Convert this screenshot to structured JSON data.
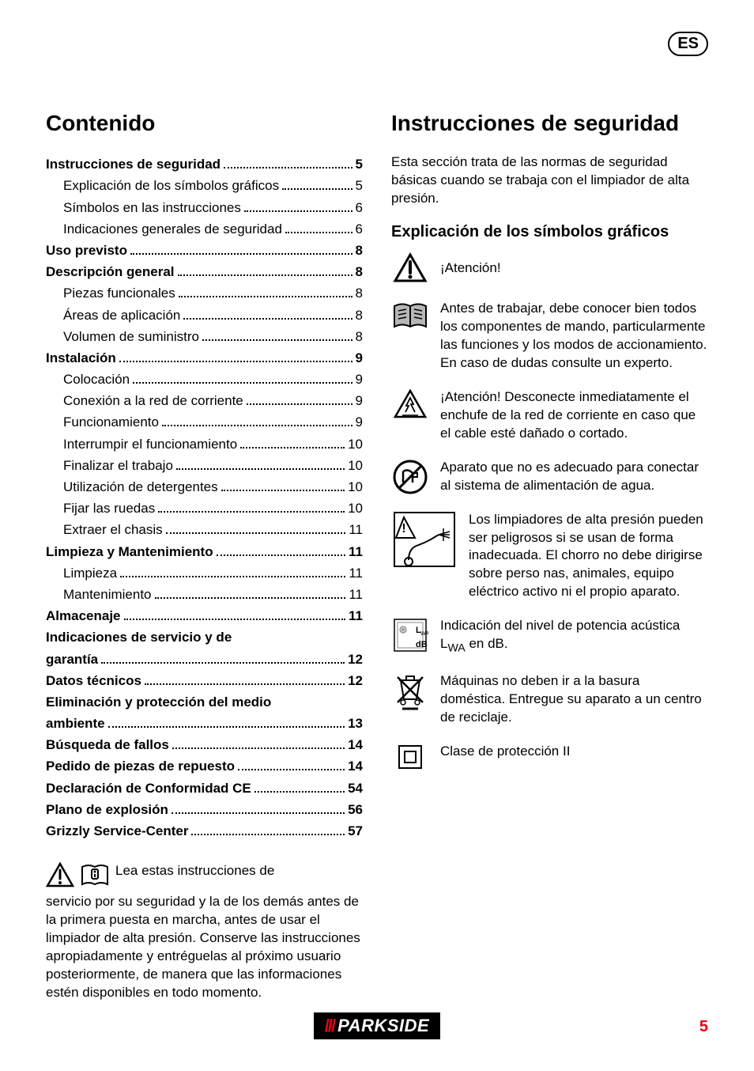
{
  "lang_badge": "ES",
  "left": {
    "heading": "Contenido",
    "toc": [
      {
        "label": "Instrucciones de seguridad",
        "page": "5",
        "bold": true
      },
      {
        "label": "Explicación de los símbolos gráficos",
        "page": "5",
        "indent": true
      },
      {
        "label": "Símbolos en las instrucciones",
        "page": "6",
        "indent": true
      },
      {
        "label": "Indicaciones generales de seguridad",
        "page": "6",
        "indent": true
      },
      {
        "label": "Uso previsto",
        "page": "8",
        "bold": true
      },
      {
        "label": "Descripción general",
        "page": "8",
        "bold": true
      },
      {
        "label": "Piezas funcionales",
        "page": "8",
        "indent": true
      },
      {
        "label": "Áreas de aplicación",
        "page": "8",
        "indent": true
      },
      {
        "label": "Volumen de suministro",
        "page": "8",
        "indent": true
      },
      {
        "label": "Instalación",
        "page": "9",
        "bold": true
      },
      {
        "label": "Colocación",
        "page": "9",
        "indent": true
      },
      {
        "label": "Conexión a la red de corriente",
        "page": "9",
        "indent": true
      },
      {
        "label": "Funcionamiento",
        "page": "9",
        "indent": true
      },
      {
        "label": "Interrumpir el funcionamiento",
        "page": "10",
        "indent": true
      },
      {
        "label": "Finalizar el trabajo",
        "page": "10",
        "indent": true
      },
      {
        "label": "Utilización de detergentes",
        "page": "10",
        "indent": true
      },
      {
        "label": "Fijar las ruedas",
        "page": "10",
        "indent": true
      },
      {
        "label": "Extraer el chasis",
        "page": "11",
        "indent": true
      },
      {
        "label": "Limpieza y Mantenimiento",
        "page": "11",
        "bold": true
      },
      {
        "label": "Limpieza",
        "page": "11",
        "indent": true
      },
      {
        "label": "Mantenimiento",
        "page": "11",
        "indent": true
      },
      {
        "label": "Almacenaje",
        "page": "11",
        "bold": true
      },
      {
        "two_lines": true,
        "label1": "Indicaciones de servicio y de",
        "label2": "garantía",
        "page": "12",
        "bold": true
      },
      {
        "label": "Datos técnicos",
        "page": "12",
        "bold": true
      },
      {
        "two_lines": true,
        "label1": "Eliminación y protección del medio",
        "label2": "ambiente",
        "page": "13",
        "bold": true
      },
      {
        "label": "Búsqueda de fallos",
        "page": "14",
        "bold": true
      },
      {
        "label": "Pedido de piezas de repuesto",
        "page": "14",
        "bold": true
      },
      {
        "label": "Declaración de Conformidad CE",
        "page": "54",
        "bold": true
      },
      {
        "label": "Plano de explosión",
        "page": "56",
        "bold": true
      },
      {
        "label": "Grizzly Service-Center",
        "page": "57",
        "bold": true
      }
    ],
    "lead_para_first": "Lea estas instrucciones de",
    "lead_para_rest": "servicio por su seguridad y la de los demás antes de la primera puesta en marcha, antes de usar el limpiador de alta presión. Conserve las instrucciones apropiadamente y entréguelas al próximo usuario posteriormente, de manera que las informaciones estén disponibles en todo momento."
  },
  "right": {
    "heading": "Instrucciones de seguridad",
    "intro": "Esta sección trata de las normas de seguridad básicas cuando se trabaja con el limpiador de alta presión.",
    "subheading": "Explicación de los símbolos gráficos",
    "items": [
      {
        "icon": "warn-triangle",
        "text": "¡Atención!"
      },
      {
        "icon": "manual",
        "text": "Antes de trabajar, debe conocer bien todos los componentes de mando, particularmente las funciones y los modos de accionamiento. En caso de dudas consulte un experto."
      },
      {
        "icon": "shock",
        "text": "¡Atención! Desconecte inmediatamente el enchufe de la red de corriente en caso que el cable esté dañado o cortado."
      },
      {
        "icon": "no-water",
        "text": "Aparato que no es adecuado para conectar al sistema de alimentación de agua."
      },
      {
        "icon": "spray",
        "text": "Los limpiadores de alta presión pueden ser peligrosos si se usan de forma inadecuada. El chorro no debe dirigirse sobre perso nas, animales, equipo eléctrico activo ni el propio aparato.",
        "wide": true
      },
      {
        "icon": "lwa",
        "text_html": "Indicación del nivel de potencia acústica L<sub>WA</sub> en dB."
      },
      {
        "icon": "recycle",
        "text": "Máquinas no deben ir a la basura doméstica. Entregue su aparato a un centro de reciclaje."
      },
      {
        "icon": "class2",
        "text": "Clase de protección II"
      }
    ]
  },
  "footer": {
    "brand": "PARKSIDE",
    "page": "5"
  },
  "colors": {
    "accent": "#e30613"
  }
}
